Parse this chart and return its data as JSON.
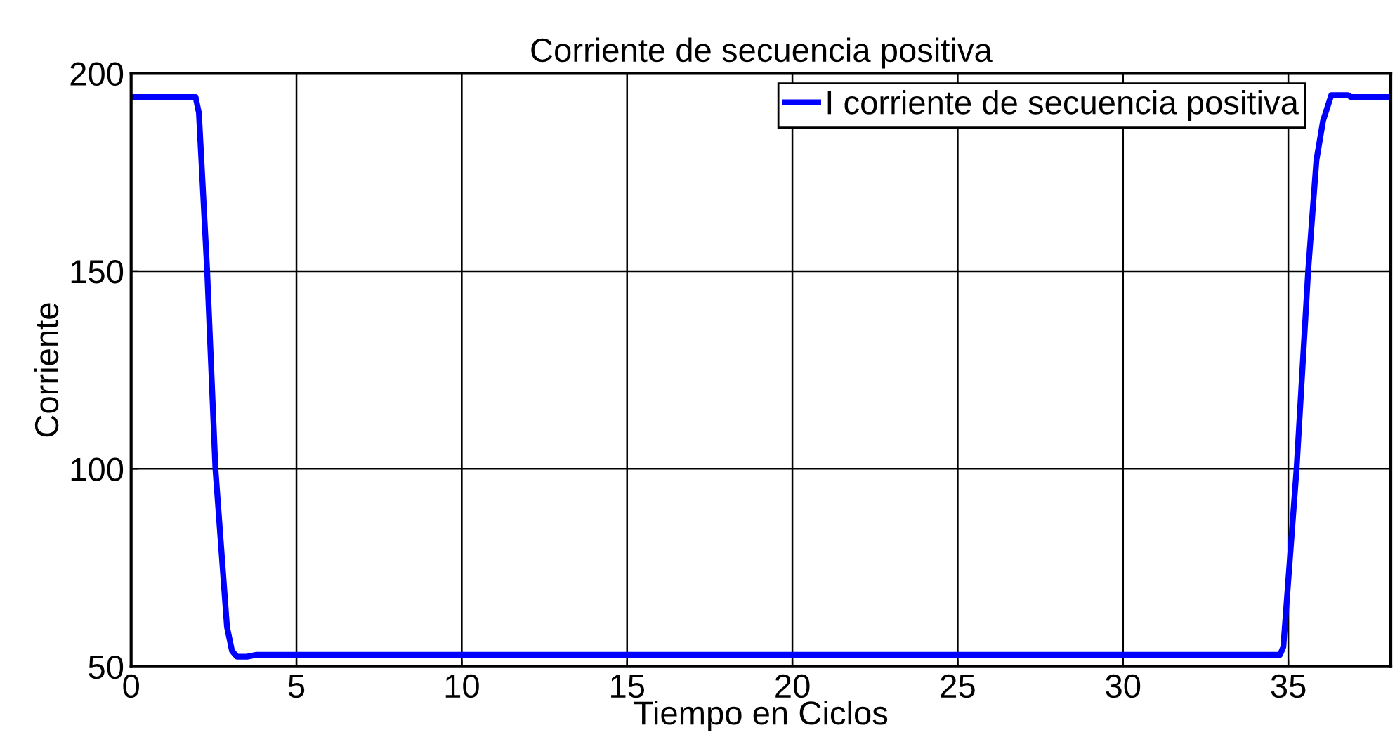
{
  "chart_data": {
    "type": "line",
    "title": "Corriente de secuencia positiva",
    "xlabel": "Tiempo en Ciclos",
    "ylabel": "Corriente",
    "series": [
      {
        "name": "I corriente de secuencia positiva",
        "color": "#0000ff",
        "x": [
          0,
          1.95,
          2.05,
          2.3,
          2.55,
          2.9,
          3.05,
          3.2,
          3.5,
          3.8,
          34.75,
          34.85,
          35.25,
          35.6,
          35.85,
          36.05,
          36.3,
          36.8,
          36.9,
          38.1
        ],
        "values": [
          194,
          194,
          190,
          150,
          100,
          60,
          54,
          52.5,
          52.5,
          53,
          53,
          55,
          100,
          150,
          178,
          188,
          194.5,
          194.5,
          194,
          194
        ]
      }
    ],
    "xlim": [
      0,
      38.1
    ],
    "ylim": [
      50,
      200
    ],
    "xticks": [
      0,
      5,
      10,
      15,
      20,
      25,
      30,
      35
    ],
    "yticks": [
      50,
      100,
      150,
      200
    ],
    "grid": true,
    "legend": "top right",
    "line_style": "solid",
    "marker": "none"
  }
}
